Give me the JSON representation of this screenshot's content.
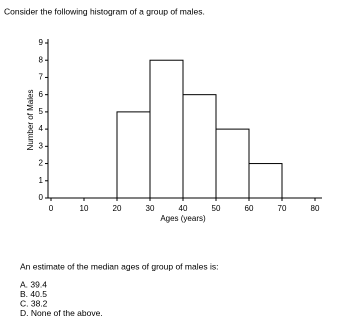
{
  "question": "Consider the following histogram of a group of males.",
  "chart_data": {
    "type": "histogram",
    "bins": [
      20,
      30,
      40,
      50,
      60,
      70
    ],
    "values": [
      5,
      8,
      6,
      4,
      2
    ],
    "color": "#ffffff",
    "edge_color": "#000000",
    "xlabel": "Ages (years)",
    "ylabel": "Number of Males",
    "xlim": [
      0,
      80
    ],
    "xticks": [
      0,
      10,
      20,
      30,
      40,
      50,
      60,
      70,
      80
    ],
    "ylim": [
      0,
      9
    ],
    "yticks": [
      0,
      1,
      2,
      3,
      4,
      5,
      6,
      7,
      8,
      9
    ]
  },
  "prompt": "An estimate of the median ages of group of males is:",
  "options": [
    "A. 39.4",
    "B. 40.5",
    "C. 38.2",
    "D. None of the above."
  ]
}
